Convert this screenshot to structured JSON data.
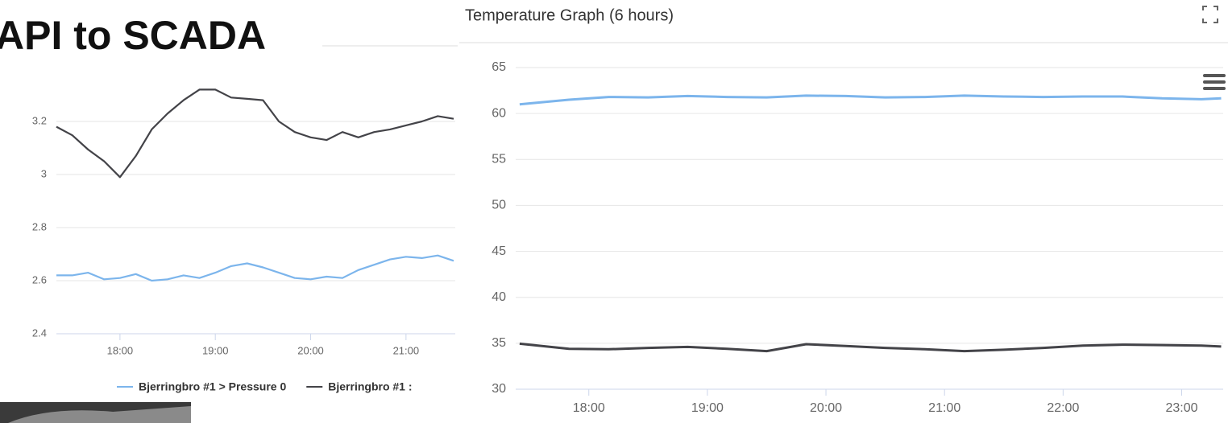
{
  "header": {
    "title": "API to SCADA"
  },
  "chart_data": [
    {
      "type": "line",
      "x": [
        "17:20",
        "17:30",
        "17:40",
        "17:50",
        "18:00",
        "18:10",
        "18:20",
        "18:30",
        "18:40",
        "18:50",
        "19:00",
        "19:10",
        "19:20",
        "19:30",
        "19:40",
        "19:50",
        "20:00",
        "20:10",
        "20:20",
        "20:30",
        "20:40",
        "20:50",
        "21:00",
        "21:10",
        "21:20",
        "21:30"
      ],
      "series": [
        {
          "name": "Bjerringbro #1 > Pressure 0",
          "color": "#7cb5ec",
          "values": [
            2.62,
            2.62,
            2.63,
            2.605,
            2.61,
            2.625,
            2.6,
            2.605,
            2.62,
            2.61,
            2.63,
            2.655,
            2.665,
            2.65,
            2.63,
            2.61,
            2.605,
            2.615,
            2.61,
            2.64,
            2.66,
            2.68,
            2.69,
            2.685,
            2.695,
            2.675
          ]
        },
        {
          "name": "Bjerringbro #1 :",
          "color": "#434348",
          "values": [
            3.18,
            3.148,
            3.094,
            3.05,
            2.99,
            3.07,
            3.17,
            3.23,
            3.28,
            3.32,
            3.32,
            3.29,
            3.285,
            3.28,
            3.2,
            3.16,
            3.14,
            3.13,
            3.16,
            3.14,
            3.16,
            3.17,
            3.185,
            3.2,
            3.22,
            3.21
          ]
        }
      ],
      "xlim": [
        "17:20",
        "21:31"
      ],
      "xticks": [
        "18:00",
        "19:00",
        "20:00",
        "21:00"
      ],
      "ylim": [
        2.4,
        3.4
      ],
      "yticks": [
        2.4,
        2.6,
        2.8,
        3,
        3.2
      ],
      "grid": true,
      "legend": "bottom"
    },
    {
      "type": "line",
      "title": "Temperature Graph (6 hours)",
      "x": [
        "17:25",
        "17:50",
        "18:10",
        "18:30",
        "18:50",
        "19:10",
        "19:30",
        "19:50",
        "20:10",
        "20:30",
        "20:50",
        "21:10",
        "21:30",
        "21:50",
        "22:10",
        "22:30",
        "22:50",
        "23:10",
        "23:20"
      ],
      "series": [
        {
          "color": "#7cb5ec",
          "values": [
            61.0,
            61.5,
            61.8,
            61.75,
            61.9,
            61.8,
            61.75,
            61.95,
            61.9,
            61.75,
            61.8,
            61.95,
            61.85,
            61.8,
            61.85,
            61.85,
            61.65,
            61.55,
            61.65
          ]
        },
        {
          "color": "#434348",
          "values": [
            34.95,
            34.4,
            34.35,
            34.5,
            34.6,
            34.4,
            34.15,
            34.9,
            34.7,
            34.5,
            34.35,
            34.15,
            34.3,
            34.5,
            34.75,
            34.85,
            34.8,
            34.75,
            34.65
          ]
        }
      ],
      "xlim": [
        "17:23",
        "23:21"
      ],
      "xticks": [
        "18:00",
        "19:00",
        "20:00",
        "21:00",
        "22:00",
        "23:00"
      ],
      "ylim": [
        30,
        65
      ],
      "yticks": [
        30,
        35,
        40,
        45,
        50,
        55,
        60,
        65
      ],
      "grid": true
    }
  ]
}
